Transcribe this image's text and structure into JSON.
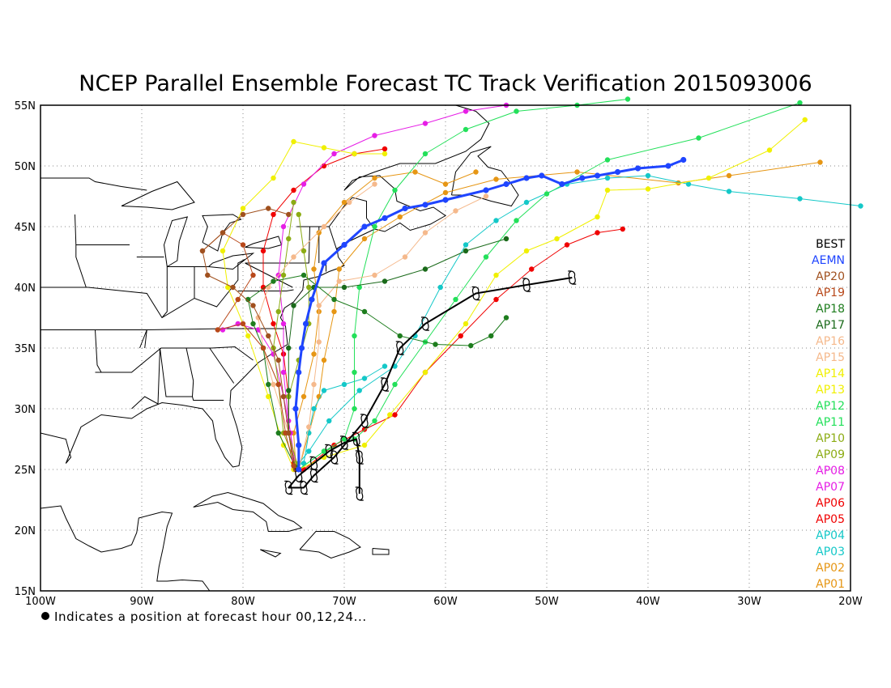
{
  "title": "NCEP Parallel Ensemble Forecast TC Track Verification 2015093006",
  "footnote": "Indicates a position at forecast hour 00,12,24...",
  "map": {
    "lon_range": [
      -100,
      -20
    ],
    "lat_range": [
      15,
      55
    ],
    "lat_ticks": [
      "15N",
      "20N",
      "25N",
      "30N",
      "35N",
      "40N",
      "45N",
      "50N",
      "55N"
    ],
    "lon_ticks": [
      "100W",
      "90W",
      "80W",
      "70W",
      "60W",
      "50W",
      "40W",
      "30W",
      "20W"
    ]
  },
  "legend": [
    {
      "name": "BEST",
      "color": "#000000"
    },
    {
      "name": "AEMN",
      "color": "#1f45ff"
    },
    {
      "name": "AP20",
      "color": "#a0501e"
    },
    {
      "name": "AP19",
      "color": "#b8481a"
    },
    {
      "name": "AP18",
      "color": "#1e7d1e"
    },
    {
      "name": "AP17",
      "color": "#1a6a1a"
    },
    {
      "name": "AP16",
      "color": "#f5b98c"
    },
    {
      "name": "AP15",
      "color": "#f5b98c"
    },
    {
      "name": "AP14",
      "color": "#f0f000"
    },
    {
      "name": "AP13",
      "color": "#f0f000"
    },
    {
      "name": "AP12",
      "color": "#23e05a"
    },
    {
      "name": "AP11",
      "color": "#23e05a"
    },
    {
      "name": "AP10",
      "color": "#8cac14"
    },
    {
      "name": "AP09",
      "color": "#8cac14"
    },
    {
      "name": "AP08",
      "color": "#e61ee6"
    },
    {
      "name": "AP07",
      "color": "#e61ee6"
    },
    {
      "name": "AP06",
      "color": "#f00000"
    },
    {
      "name": "AP05",
      "color": "#f00000"
    },
    {
      "name": "AP04",
      "color": "#14c8c8"
    },
    {
      "name": "AP03",
      "color": "#14c8c8"
    },
    {
      "name": "AP02",
      "color": "#e69614"
    },
    {
      "name": "AP01",
      "color": "#e69614"
    }
  ],
  "tracks": [
    {
      "name": "BEST",
      "color": "#000000",
      "width": 2,
      "symbol": "hurricane",
      "points": [
        [
          -68.5,
          23
        ],
        [
          -68.5,
          26
        ],
        [
          -68.8,
          27.5
        ],
        [
          -70,
          27.2
        ],
        [
          -71.5,
          26.5
        ],
        [
          -73,
          25.5
        ],
        [
          -74.5,
          24.5
        ],
        [
          -75.5,
          23.5
        ],
        [
          -74,
          23.5
        ],
        [
          -73,
          24.5
        ],
        [
          -71,
          26
        ],
        [
          -68,
          29
        ],
        [
          -66,
          32
        ],
        [
          -64.5,
          35
        ],
        [
          -62,
          37
        ],
        [
          -57,
          39.5
        ],
        [
          -52,
          40.2
        ],
        [
          -47.5,
          40.8
        ]
      ]
    },
    {
      "name": "AEMN",
      "color": "#1f45ff",
      "width": 3,
      "points": [
        [
          -74.5,
          25
        ],
        [
          -74.5,
          27
        ],
        [
          -74.8,
          30
        ],
        [
          -74.5,
          33
        ],
        [
          -74.2,
          35
        ],
        [
          -73.8,
          37
        ],
        [
          -73.2,
          39
        ],
        [
          -72,
          42
        ],
        [
          -70,
          43.5
        ],
        [
          -68,
          45
        ],
        [
          -66,
          45.7
        ],
        [
          -64,
          46.5
        ],
        [
          -62,
          46.8
        ],
        [
          -60,
          47.2
        ],
        [
          -56,
          48
        ],
        [
          -54,
          48.5
        ],
        [
          -52,
          49
        ],
        [
          -50.5,
          49.2
        ],
        [
          -48.5,
          48.5
        ],
        [
          -46.5,
          49
        ],
        [
          -45,
          49.2
        ],
        [
          -43,
          49.5
        ],
        [
          -41,
          49.8
        ],
        [
          -38,
          50
        ],
        [
          -36.5,
          50.5
        ]
      ]
    },
    {
      "name": "AP01",
      "color": "#e69614",
      "width": 1,
      "points": [
        [
          -74.5,
          25
        ],
        [
          -73.5,
          28
        ],
        [
          -72.5,
          31
        ],
        [
          -72,
          34
        ],
        [
          -71,
          38
        ],
        [
          -70.5,
          41.5
        ],
        [
          -68,
          44
        ],
        [
          -64.5,
          45.8
        ],
        [
          -60,
          47.8
        ],
        [
          -55,
          48.9
        ],
        [
          -47,
          49.5
        ],
        [
          -37,
          48.6
        ],
        [
          -32,
          49.2
        ],
        [
          -23,
          50.3
        ]
      ]
    },
    {
      "name": "AP02",
      "color": "#e69614",
      "width": 1,
      "points": [
        [
          -74.8,
          25.5
        ],
        [
          -75,
          28
        ],
        [
          -74,
          31
        ],
        [
          -73,
          34.5
        ],
        [
          -72.5,
          38
        ],
        [
          -73,
          41.5
        ],
        [
          -72.5,
          44.5
        ],
        [
          -70,
          47
        ],
        [
          -67,
          49
        ],
        [
          -63,
          49.5
        ],
        [
          -60,
          48.5
        ],
        [
          -57,
          49.5
        ]
      ]
    },
    {
      "name": "AP03",
      "color": "#14c8c8",
      "width": 1,
      "points": [
        [
          -74.5,
          25.5
        ],
        [
          -73.5,
          26.5
        ],
        [
          -71.5,
          29
        ],
        [
          -68.5,
          31.5
        ],
        [
          -65,
          33.5
        ],
        [
          -63,
          36
        ],
        [
          -60.5,
          40
        ],
        [
          -58,
          43.5
        ],
        [
          -55,
          45.5
        ],
        [
          -52,
          47
        ],
        [
          -48,
          48.5
        ],
        [
          -44,
          49
        ],
        [
          -40,
          49.2
        ],
        [
          -36,
          48.5
        ],
        [
          -32,
          47.9
        ],
        [
          -25,
          47.3
        ],
        [
          -19,
          46.7
        ]
      ]
    },
    {
      "name": "AP04",
      "color": "#14c8c8",
      "width": 1,
      "points": [
        [
          -74,
          25.5
        ],
        [
          -73.5,
          28
        ],
        [
          -73,
          30
        ],
        [
          -72,
          31.5
        ],
        [
          -70,
          32
        ],
        [
          -68,
          32.5
        ],
        [
          -66,
          33.5
        ]
      ]
    },
    {
      "name": "AP05",
      "color": "#f00000",
      "width": 1,
      "points": [
        [
          -74,
          25
        ],
        [
          -71,
          27
        ],
        [
          -68,
          28.3
        ],
        [
          -65,
          29.5
        ],
        [
          -62,
          33
        ],
        [
          -58.5,
          36
        ],
        [
          -55,
          39
        ],
        [
          -51.5,
          41.5
        ],
        [
          -48,
          43.5
        ],
        [
          -45,
          44.5
        ],
        [
          -42.5,
          44.8
        ]
      ]
    },
    {
      "name": "AP06",
      "color": "#f00000",
      "width": 1,
      "points": [
        [
          -75,
          25.5
        ],
        [
          -75.5,
          28
        ],
        [
          -75.5,
          31
        ],
        [
          -76,
          34.5
        ],
        [
          -77,
          37
        ],
        [
          -78,
          40
        ],
        [
          -78,
          43
        ],
        [
          -77,
          46
        ],
        [
          -75,
          48
        ],
        [
          -72,
          50
        ],
        [
          -69,
          51
        ],
        [
          -66,
          51.4
        ]
      ]
    },
    {
      "name": "AP07",
      "color": "#e61ee6",
      "width": 1,
      "points": [
        [
          -75,
          25
        ],
        [
          -75.3,
          28
        ],
        [
          -76,
          31
        ],
        [
          -77,
          34.5
        ],
        [
          -78.5,
          36.5
        ],
        [
          -80.5,
          37
        ],
        [
          -82,
          36.5
        ]
      ]
    },
    {
      "name": "AP08",
      "color": "#e61ee6",
      "width": 1,
      "points": [
        [
          -74.8,
          25.3
        ],
        [
          -75.5,
          29
        ],
        [
          -76,
          33
        ],
        [
          -76,
          37
        ],
        [
          -76.5,
          41
        ],
        [
          -76,
          45
        ],
        [
          -74,
          48.5
        ],
        [
          -71,
          51
        ],
        [
          -67,
          52.5
        ],
        [
          -62,
          53.5
        ],
        [
          -58,
          54.5
        ],
        [
          -54,
          55
        ]
      ]
    },
    {
      "name": "AP09",
      "color": "#8cac14",
      "width": 1,
      "points": [
        [
          -74.5,
          25
        ],
        [
          -75.5,
          28
        ],
        [
          -75.5,
          31
        ],
        [
          -74.5,
          34
        ],
        [
          -73.5,
          37
        ],
        [
          -73.5,
          40
        ],
        [
          -74,
          43
        ],
        [
          -74.5,
          46
        ]
      ]
    },
    {
      "name": "AP10",
      "color": "#8cac14",
      "width": 1,
      "points": [
        [
          -74.8,
          25.5
        ],
        [
          -76,
          28
        ],
        [
          -76.5,
          32
        ],
        [
          -77,
          35
        ],
        [
          -76.5,
          38
        ],
        [
          -76,
          41
        ],
        [
          -75.5,
          44
        ],
        [
          -75,
          47
        ]
      ]
    },
    {
      "name": "AP11",
      "color": "#23e05a",
      "width": 1,
      "points": [
        [
          -74.5,
          25
        ],
        [
          -72,
          26.5
        ],
        [
          -70,
          27.5
        ],
        [
          -69,
          30
        ],
        [
          -69,
          33
        ],
        [
          -69,
          36
        ],
        [
          -68.5,
          40
        ],
        [
          -67,
          45
        ],
        [
          -65,
          48
        ],
        [
          -62,
          51
        ],
        [
          -58,
          53
        ],
        [
          -53,
          54.5
        ],
        [
          -47,
          55
        ],
        [
          -42,
          55.5
        ]
      ]
    },
    {
      "name": "AP12",
      "color": "#23e05a",
      "width": 1,
      "points": [
        [
          -74.5,
          25
        ],
        [
          -72,
          26.5
        ],
        [
          -69,
          27.5
        ],
        [
          -67,
          29
        ],
        [
          -65,
          32
        ],
        [
          -62,
          35.5
        ],
        [
          -59,
          39
        ],
        [
          -56,
          42.5
        ],
        [
          -53,
          45.5
        ],
        [
          -50,
          47.7
        ],
        [
          -44,
          50.5
        ],
        [
          -35,
          52.3
        ],
        [
          -25,
          55.2
        ]
      ]
    },
    {
      "name": "AP13",
      "color": "#f0f000",
      "width": 1,
      "points": [
        [
          -74.5,
          25
        ],
        [
          -72,
          26
        ],
        [
          -68,
          27
        ],
        [
          -65.5,
          29.5
        ],
        [
          -62,
          33
        ],
        [
          -58,
          37
        ],
        [
          -55,
          41
        ],
        [
          -52,
          43
        ],
        [
          -49,
          44
        ],
        [
          -45,
          45.8
        ],
        [
          -44,
          48
        ],
        [
          -40,
          48.1
        ],
        [
          -34,
          49
        ],
        [
          -28,
          51.3
        ],
        [
          -24.5,
          53.8
        ]
      ]
    },
    {
      "name": "AP14",
      "color": "#f0f000",
      "width": 1,
      "points": [
        [
          -75,
          25
        ],
        [
          -76,
          27
        ],
        [
          -77.5,
          31
        ],
        [
          -79.5,
          36
        ],
        [
          -81.5,
          40
        ],
        [
          -82,
          43
        ],
        [
          -80,
          46.5
        ],
        [
          -77,
          49
        ],
        [
          -75,
          52
        ],
        [
          -72,
          51.5
        ],
        [
          -69,
          51
        ],
        [
          -66,
          51
        ]
      ]
    },
    {
      "name": "AP15",
      "color": "#f5b98c",
      "width": 1,
      "points": [
        [
          -74.5,
          25
        ],
        [
          -73.5,
          28.5
        ],
        [
          -73,
          32
        ],
        [
          -72.5,
          35.5
        ],
        [
          -72.5,
          38.5
        ],
        [
          -70.5,
          40.5
        ],
        [
          -67,
          41
        ],
        [
          -64,
          42.5
        ],
        [
          -62,
          44.5
        ],
        [
          -59,
          46.3
        ],
        [
          -56,
          47.5
        ]
      ]
    },
    {
      "name": "AP16",
      "color": "#f5b98c",
      "width": 1,
      "points": [
        [
          -74.8,
          25.2
        ],
        [
          -75.5,
          28
        ],
        [
          -77,
          32
        ],
        [
          -78,
          35
        ],
        [
          -78.5,
          37.5
        ],
        [
          -77.5,
          40
        ],
        [
          -75,
          42.5
        ],
        [
          -72,
          45
        ],
        [
          -69.5,
          47
        ],
        [
          -67,
          48.5
        ]
      ]
    },
    {
      "name": "AP17",
      "color": "#1a6a1a",
      "width": 1,
      "points": [
        [
          -74.8,
          25
        ],
        [
          -75.5,
          28
        ],
        [
          -75.5,
          31.5
        ],
        [
          -75.5,
          35
        ],
        [
          -75,
          38.5
        ],
        [
          -73,
          40
        ],
        [
          -70,
          40
        ],
        [
          -66,
          40.5
        ],
        [
          -62,
          41.5
        ],
        [
          -58,
          43
        ],
        [
          -54,
          44
        ]
      ]
    },
    {
      "name": "AP18",
      "color": "#1e7d1e",
      "width": 1,
      "points": [
        [
          -74.8,
          25.2
        ],
        [
          -76.5,
          28
        ],
        [
          -77.5,
          32
        ],
        [
          -78,
          35
        ],
        [
          -79,
          37
        ],
        [
          -79.5,
          39
        ],
        [
          -77,
          40.5
        ],
        [
          -74,
          41
        ],
        [
          -71,
          39
        ],
        [
          -68,
          38
        ],
        [
          -64.5,
          36
        ],
        [
          -61,
          35.3
        ],
        [
          -57.5,
          35.2
        ],
        [
          -55.5,
          36
        ],
        [
          -54,
          37.5
        ]
      ]
    },
    {
      "name": "AP19",
      "color": "#b8481a",
      "width": 1,
      "points": [
        [
          -75,
          25.3
        ],
        [
          -75.8,
          28
        ],
        [
          -76.5,
          32
        ],
        [
          -78,
          35
        ],
        [
          -80,
          37
        ],
        [
          -82.5,
          36.5
        ],
        [
          -80.5,
          39
        ],
        [
          -79,
          41
        ],
        [
          -80,
          43.5
        ],
        [
          -82,
          44.5
        ],
        [
          -84,
          43
        ]
      ]
    },
    {
      "name": "AP20",
      "color": "#a0501e",
      "width": 1,
      "points": [
        [
          -74.8,
          25
        ],
        [
          -75.5,
          28
        ],
        [
          -76,
          31
        ],
        [
          -76.5,
          34
        ],
        [
          -77.5,
          36
        ],
        [
          -79,
          38.5
        ],
        [
          -81,
          40
        ],
        [
          -83.5,
          41
        ],
        [
          -84,
          43
        ],
        [
          -82,
          44.5
        ],
        [
          -80,
          46
        ],
        [
          -77.5,
          46.5
        ],
        [
          -75.5,
          46
        ]
      ]
    }
  ]
}
